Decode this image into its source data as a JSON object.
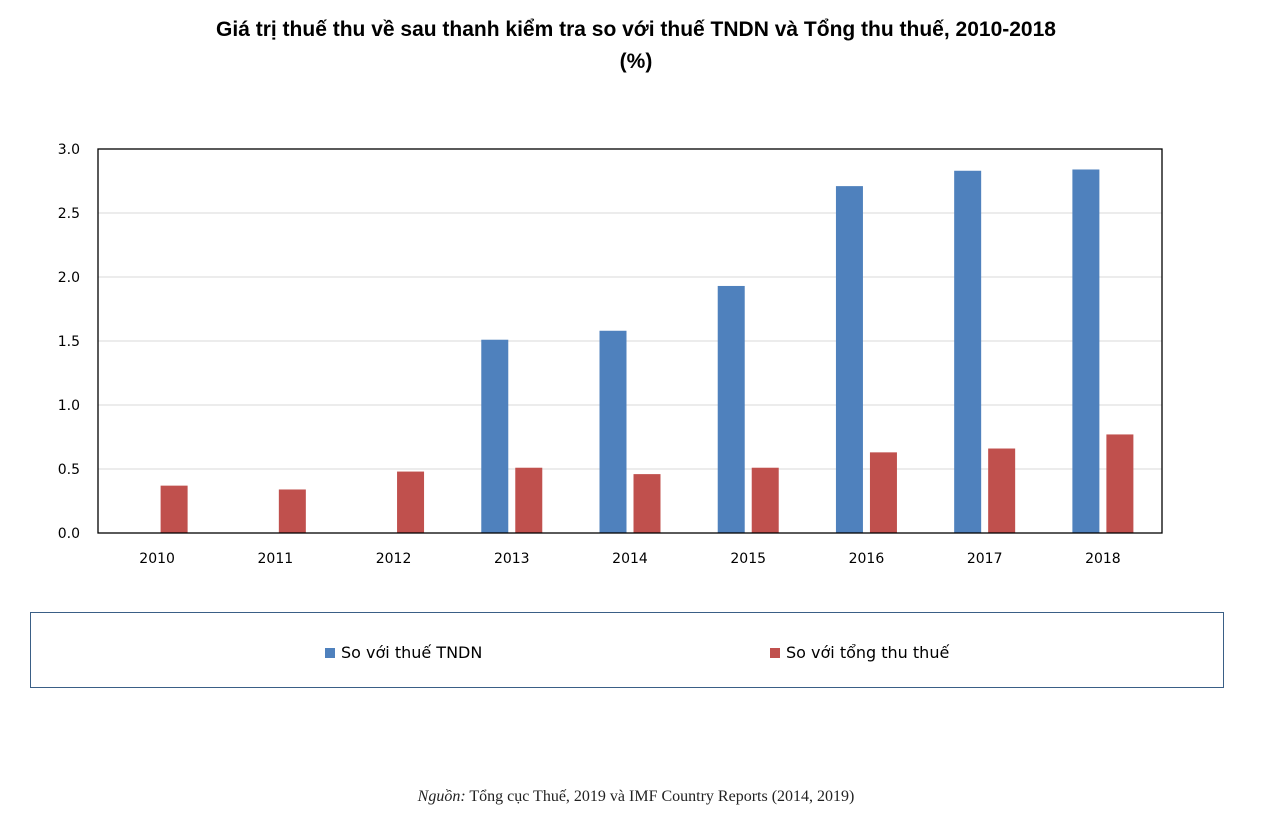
{
  "title_line1": "Giá trị thuế thu về sau thanh kiểm tra so với thuế TNDN và Tổng thu thuế, 2010-2018",
  "title_line2": "(%)",
  "source_label": "Nguồn:",
  "source_text": "Tổng cục Thuế, 2019 và IMF Country Reports (2014, 2019)",
  "legend": {
    "series1": "So với thuế TNDN",
    "series2": "So với tổng thu thuế"
  },
  "colors": {
    "series1": "#4f81bd",
    "series2": "#c0504d",
    "grid": "#d9d9d9",
    "axis": "#000000"
  },
  "chart_data": {
    "type": "bar",
    "title": "Giá trị thuế thu về sau thanh kiểm tra so với thuế TNDN và Tổng thu thuế, 2010-2018 (%)",
    "categories": [
      "2010",
      "2011",
      "2012",
      "2013",
      "2014",
      "2015",
      "2016",
      "2017",
      "2018"
    ],
    "series": [
      {
        "name": "So với thuế TNDN",
        "values": [
          null,
          null,
          null,
          1.51,
          1.58,
          1.93,
          2.71,
          2.83,
          2.84
        ]
      },
      {
        "name": "So với tổng thu thuế",
        "values": [
          0.37,
          0.34,
          0.48,
          0.51,
          0.46,
          0.51,
          0.63,
          0.66,
          0.77
        ]
      }
    ],
    "ylim": [
      0,
      3.0
    ],
    "yticks": [
      "0.0",
      "0.5",
      "1.0",
      "1.5",
      "2.0",
      "2.5",
      "3.0"
    ],
    "grid": true,
    "legend_position": "bottom"
  }
}
